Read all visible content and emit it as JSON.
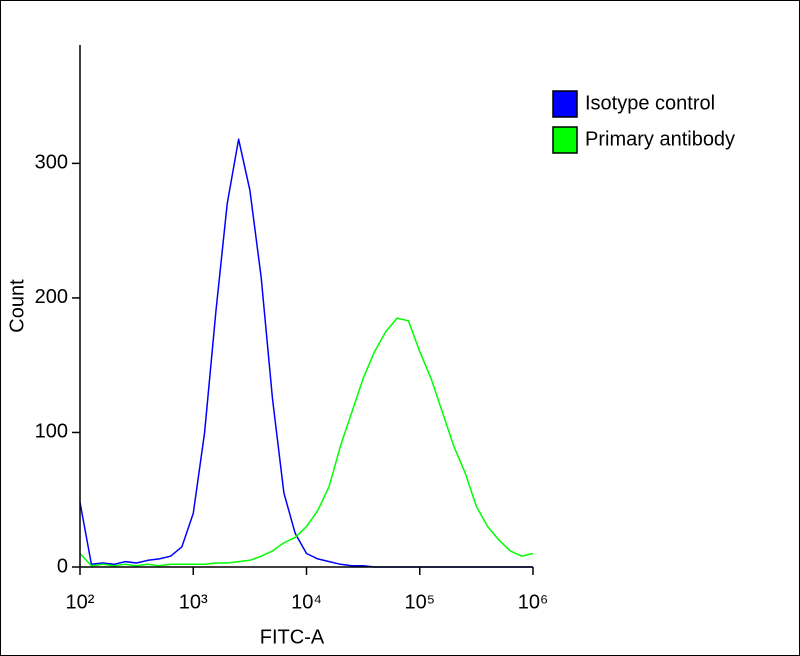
{
  "chart_data": {
    "type": "line",
    "xlabel": "FITC-A",
    "ylabel": "Count",
    "xscale": "log",
    "xlim": [
      100,
      1000000
    ],
    "xticks": [
      {
        "value": 100,
        "label": "10²"
      },
      {
        "value": 1000,
        "label": "10³"
      },
      {
        "value": 10000,
        "label": "10⁴"
      },
      {
        "value": 100000,
        "label": "10⁵"
      },
      {
        "value": 1000000,
        "label": "10⁶"
      }
    ],
    "ylim": [
      0,
      388
    ],
    "yticks": [
      0,
      100,
      200,
      300
    ],
    "legend": "right",
    "x": [
      100,
      126,
      158,
      200,
      251,
      316,
      398,
      501,
      631,
      794,
      1000,
      1259,
      1585,
      1995,
      2512,
      3162,
      3981,
      5012,
      6310,
      7943,
      10000,
      12589,
      15849,
      19953,
      25119,
      31623,
      39811,
      50119,
      63096,
      79433,
      100000,
      125893,
      158489,
      199526,
      251189,
      316228,
      398107,
      501187,
      630957,
      794328,
      1000000
    ],
    "series": [
      {
        "name": "Isotype control",
        "color": "#0000ff",
        "values": [
          48,
          2,
          3,
          2,
          4,
          3,
          5,
          6,
          8,
          15,
          40,
          100,
          190,
          270,
          318,
          280,
          215,
          125,
          55,
          25,
          10,
          6,
          4,
          2,
          1,
          1,
          0,
          0,
          0,
          0,
          0,
          0,
          0,
          0,
          0,
          0,
          0,
          0,
          0,
          0,
          0
        ]
      },
      {
        "name": "Primary antibody",
        "color": "#00ff00",
        "values": [
          10,
          1,
          2,
          1,
          2,
          1,
          2,
          1,
          2,
          2,
          2,
          2,
          3,
          3,
          4,
          5,
          8,
          12,
          18,
          22,
          30,
          42,
          60,
          90,
          115,
          140,
          160,
          175,
          185,
          183,
          160,
          140,
          115,
          90,
          70,
          45,
          30,
          20,
          12,
          8,
          10
        ]
      }
    ]
  }
}
